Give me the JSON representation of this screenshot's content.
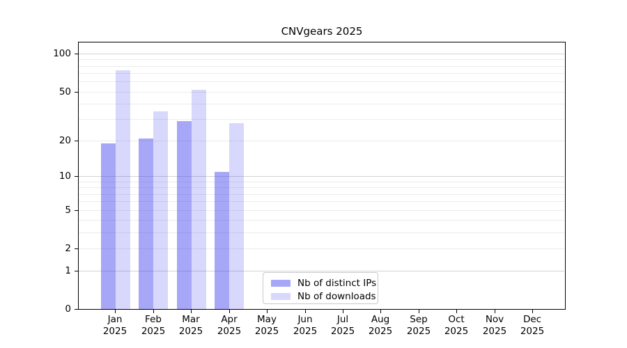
{
  "chart_data": {
    "type": "bar",
    "title": "CNVgears 2025",
    "categories": [
      "Jan",
      "Feb",
      "Mar",
      "Apr",
      "May",
      "Jun",
      "Jul",
      "Aug",
      "Sep",
      "Oct",
      "Nov",
      "Dec"
    ],
    "year": "2025",
    "series": [
      {
        "name": "Nb of distinct IPs",
        "values": [
          19,
          21,
          29,
          11,
          0,
          0,
          0,
          0,
          0,
          0,
          0,
          0
        ],
        "color_hex": "#a7a7f1",
        "color_rgba": "rgba(60,60,240,0.45)"
      },
      {
        "name": "Nb of downloads",
        "values": [
          74,
          35,
          52,
          28,
          0,
          0,
          0,
          0,
          0,
          0,
          0,
          0
        ],
        "color_hex": "#d8d8f8",
        "color_rgba": "rgba(60,60,240,0.20)"
      }
    ],
    "xlabel": "",
    "ylabel": "",
    "y_scale": "log10(1+x)",
    "y_ticks": [
      0,
      1,
      2,
      5,
      10,
      20,
      50,
      100
    ],
    "ylim": [
      0,
      128
    ],
    "grid": {
      "orientation": "horizontal",
      "major_values": [
        1,
        10,
        100
      ],
      "minor_values": [
        2,
        3,
        4,
        5,
        6,
        7,
        8,
        9,
        20,
        30,
        40,
        50,
        60,
        70,
        80,
        90
      ],
      "major_color": "#d2d2d2",
      "minor_color": "#ececec"
    },
    "legend_position": "inside-bottom-center",
    "axis_color": "#000000",
    "background_color": "#ffffff"
  }
}
